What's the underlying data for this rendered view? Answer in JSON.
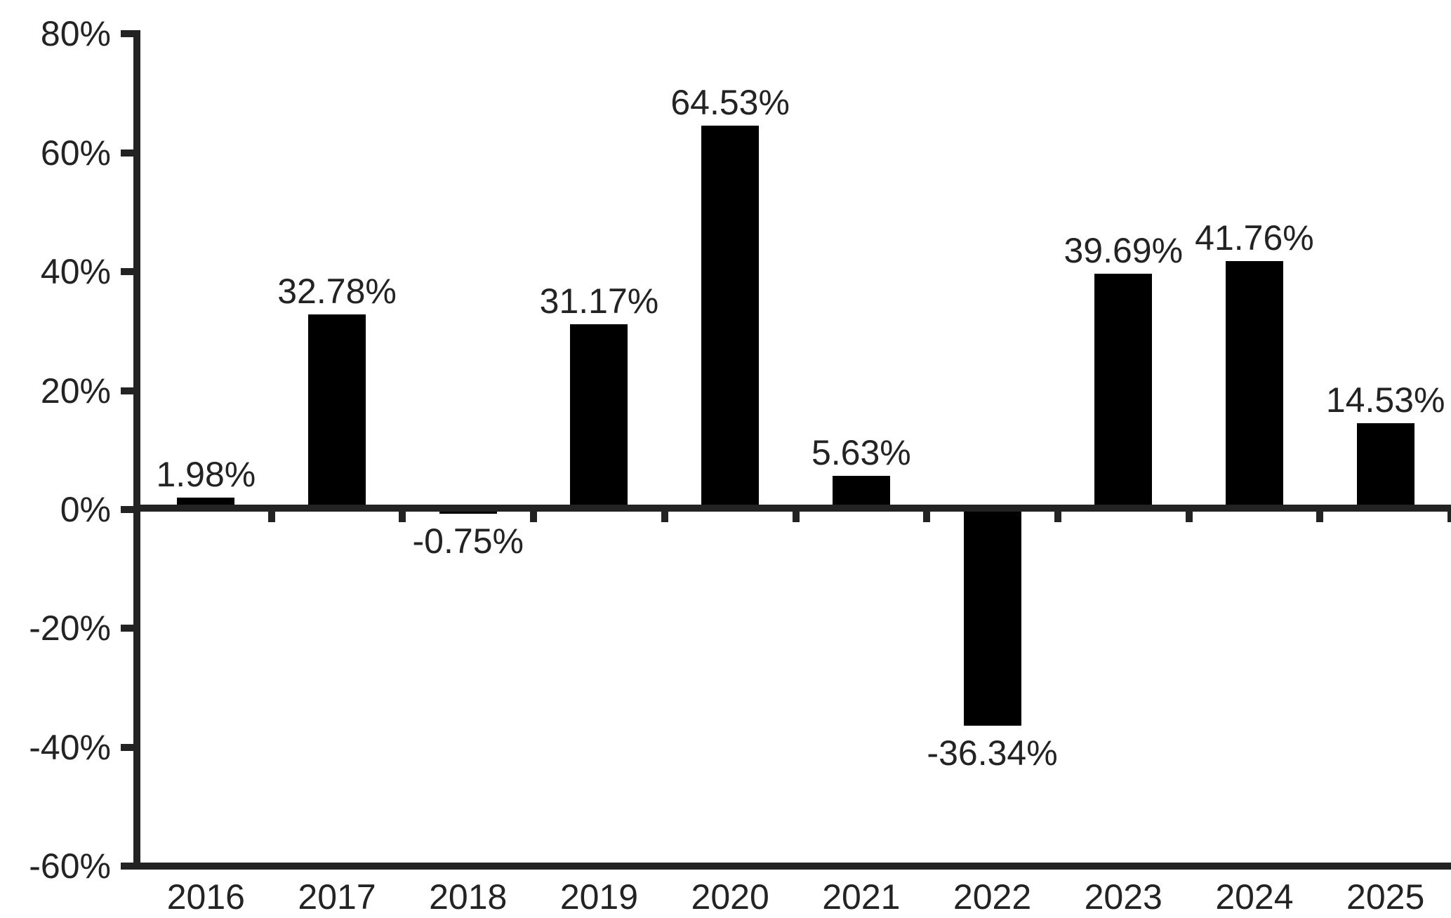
{
  "chart_data": {
    "type": "bar",
    "title": "",
    "xlabel": "",
    "ylabel": "",
    "categories": [
      "2016",
      "2017",
      "2018",
      "2019",
      "2020",
      "2021",
      "2022",
      "2023",
      "2024",
      "2025"
    ],
    "values": [
      1.98,
      32.78,
      -0.75,
      31.17,
      64.53,
      5.63,
      -36.34,
      39.69,
      41.76,
      14.53
    ],
    "value_labels": [
      "1.98%",
      "32.78%",
      "-0.75%",
      "31.17%",
      "64.53%",
      "5.63%",
      "-36.34%",
      "39.69%",
      "41.76%",
      "14.53%"
    ],
    "ylim": [
      -60,
      80
    ],
    "yticks": [
      80,
      60,
      40,
      20,
      0,
      -20,
      -40,
      -60
    ],
    "ytick_labels": [
      "80%",
      "60%",
      "40%",
      "20%",
      "0%",
      "-20%",
      "-40%",
      "-60%"
    ],
    "grid": false,
    "legend": null,
    "colors": {
      "bar": "#000000",
      "axis": "#232323",
      "text": "#232323",
      "background": "#ffffff"
    }
  }
}
